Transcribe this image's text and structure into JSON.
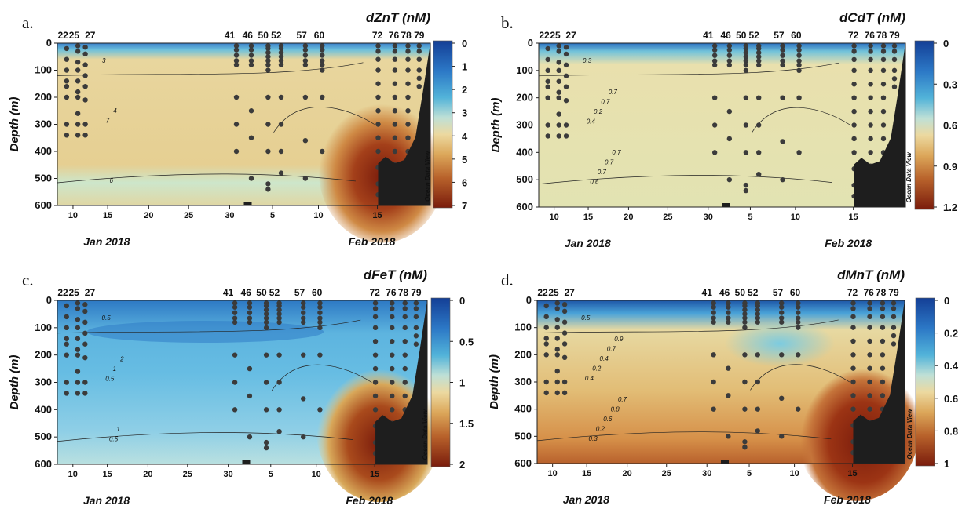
{
  "figure": {
    "stations": [
      "22",
      "25",
      "27",
      "41",
      "46",
      "50",
      "52",
      "57",
      "60",
      "72",
      "76",
      "78",
      "79"
    ],
    "x_ticks": [
      "10",
      "15",
      "20",
      "25",
      "30",
      "5",
      "10",
      "15"
    ],
    "months": [
      "Jan 2018",
      "Feb 2018"
    ],
    "y_label": "Depth (m)",
    "y_ticks": [
      "0",
      "100",
      "200",
      "300",
      "400",
      "500",
      "600"
    ],
    "watermark": "Ocean Data View"
  },
  "panels": [
    {
      "letter": "a.",
      "title": "dZnT (nM)",
      "colorbar": [
        "0",
        "1",
        "2",
        "3",
        "4",
        "5",
        "6",
        "7"
      ],
      "contour_labels": [
        "3",
        "7",
        "6",
        "4"
      ]
    },
    {
      "letter": "b.",
      "title": "dCdT (nM)",
      "colorbar": [
        "0",
        "0.3",
        "0.6",
        "0.9",
        "1.2"
      ],
      "contour_labels": [
        "0.3",
        "0.4",
        "0.6",
        "0.2",
        "0.7",
        "0.7",
        "0.7",
        "0.7",
        "0.7"
      ]
    },
    {
      "letter": "c.",
      "title": "dFeT (nM)",
      "colorbar": [
        "0",
        "0.5",
        "1",
        "1.5",
        "2"
      ],
      "contour_labels": [
        "0.5",
        "0.5",
        "0.5",
        "1",
        "1",
        "2"
      ]
    },
    {
      "letter": "d.",
      "title": "dMnT (nM)",
      "colorbar": [
        "0",
        "0.2",
        "0.4",
        "0.6",
        "0.8",
        "1"
      ],
      "contour_labels": [
        "0.5",
        "0.4",
        "0.3",
        "0.2",
        "0.2",
        "0.4",
        "0.6",
        "0.7",
        "0.8",
        "0.9",
        "0.7"
      ]
    }
  ],
  "chart_data": [
    {
      "type": "heatmap",
      "title": "dZnT (nM)",
      "ylabel": "Depth (m)",
      "ylim": [
        600,
        0
      ],
      "colorbar_range": [
        0,
        7
      ],
      "contour_levels": [
        3,
        4,
        6,
        7
      ],
      "x_domain": "Jan 8 2018 – Feb 19 2018"
    },
    {
      "type": "heatmap",
      "title": "dCdT (nM)",
      "ylabel": "Depth (m)",
      "ylim": [
        600,
        0
      ],
      "colorbar_range": [
        0,
        1.2
      ],
      "contour_levels": [
        0.2,
        0.3,
        0.4,
        0.6,
        0.7
      ],
      "x_domain": "Jan 8 2018 – Feb 19 2018"
    },
    {
      "type": "heatmap",
      "title": "dFeT (nM)",
      "ylabel": "Depth (m)",
      "ylim": [
        600,
        0
      ],
      "colorbar_range": [
        0,
        2
      ],
      "contour_levels": [
        0.5,
        1,
        2
      ],
      "x_domain": "Jan 8 2018 – Feb 19 2018"
    },
    {
      "type": "heatmap",
      "title": "dMnT (nM)",
      "ylabel": "Depth (m)",
      "ylim": [
        600,
        0
      ],
      "colorbar_range": [
        0,
        1
      ],
      "contour_levels": [
        0.2,
        0.3,
        0.4,
        0.5,
        0.6,
        0.7,
        0.8,
        0.9
      ],
      "x_domain": "Jan 8 2018 – Feb 19 2018"
    }
  ]
}
